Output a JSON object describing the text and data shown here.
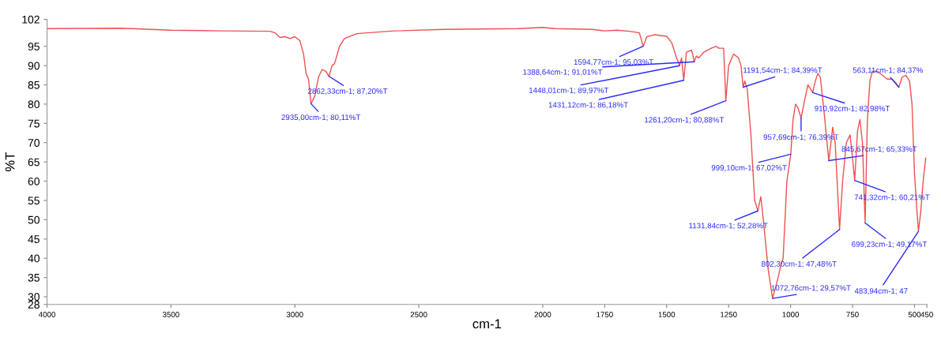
{
  "chart_data": {
    "type": "line",
    "xlabel": "cm-1",
    "ylabel": "%T",
    "xlim": [
      4000,
      450
    ],
    "xticks": [
      4000,
      3500,
      3000,
      2500,
      2000,
      1750,
      1500,
      1250,
      1000,
      750,
      500,
      450
    ],
    "ylim": [
      28,
      102
    ],
    "yticks": [
      28,
      30,
      35,
      40,
      45,
      50,
      55,
      60,
      65,
      70,
      75,
      80,
      85,
      90,
      95,
      102
    ],
    "grid": false,
    "marker": "none",
    "line_style": "solid",
    "series": [
      {
        "color": "#f05050",
        "x": [
          4000,
          3700,
          3500,
          3300,
          3100,
          3080,
          3060,
          3040,
          3020,
          3000,
          2980,
          2965,
          2955,
          2945,
          2935,
          2920,
          2905,
          2890,
          2875,
          2862.33,
          2850,
          2840,
          2820,
          2800,
          2750,
          2600,
          2400,
          2100,
          2000,
          1950,
          1800,
          1750,
          1700,
          1650,
          1610,
          1594.77,
          1580,
          1550,
          1500,
          1480,
          1460,
          1448.01,
          1440,
          1431.12,
          1420,
          1400,
          1395,
          1388.64,
          1380,
          1370,
          1350,
          1320,
          1300,
          1290,
          1270,
          1261.2,
          1250,
          1230,
          1210,
          1200,
          1191.54,
          1185,
          1175,
          1160,
          1145,
          1131.84,
          1120,
          1110,
          1090,
          1072.76,
          1050,
          1040,
          1030,
          1015,
          999.1,
          990,
          980,
          970,
          957.69,
          940,
          930,
          920,
          910.92,
          900,
          890,
          880,
          865,
          845.67,
          830,
          820,
          802.3,
          790,
          775,
          760,
          750,
          741.32,
          730,
          720,
          710,
          699.23,
          690,
          680,
          670,
          650,
          630,
          610,
          590,
          575,
          563.11,
          550,
          535,
          520,
          510,
          500,
          490,
          483.94,
          475,
          465,
          455
        ],
        "values": [
          99.6,
          99.7,
          99.2,
          99.0,
          98.9,
          98.5,
          97.3,
          97.5,
          97.0,
          97.5,
          96.5,
          93,
          88,
          86.5,
          80.1,
          82,
          87,
          89,
          88.5,
          87.2,
          90,
          90.5,
          95,
          97,
          98.3,
          99,
          99.4,
          99.6,
          99.9,
          99.6,
          99.4,
          99.0,
          99.2,
          98.9,
          98.5,
          95.0,
          97.5,
          98.0,
          97.6,
          96,
          92,
          90.0,
          92,
          86.2,
          93.5,
          94,
          93,
          91.0,
          92.5,
          92,
          93.5,
          94.5,
          95,
          94.5,
          94.5,
          80.9,
          90,
          93,
          92,
          90,
          84.4,
          86,
          84,
          72,
          55,
          52.3,
          56,
          50,
          37,
          29.6,
          35,
          38,
          40,
          60,
          67.0,
          76,
          80,
          79,
          76.4,
          82,
          85,
          84,
          83.0,
          86,
          88,
          87,
          78,
          65.3,
          74,
          70,
          47.5,
          60,
          70,
          72,
          66,
          60.2,
          73,
          76,
          70,
          49.2,
          76,
          86,
          88.5,
          88.5,
          87.5,
          86.5,
          86.5,
          85.5,
          84.4,
          87,
          87.5,
          86,
          80,
          62,
          52,
          47,
          52,
          60,
          66
        ]
      }
    ],
    "annotations": [
      {
        "text": "2862,33cm-1; 87,20%T",
        "x": 2862.33,
        "y": 87.2
      },
      {
        "text": "2935,00cm-1; 80,11%T",
        "x": 2935,
        "y": 80.11
      },
      {
        "text": "1594,77cm-1; 95,03%T",
        "x": 1594.77,
        "y": 95.03
      },
      {
        "text": "1388,64cm-1; 91,01%T",
        "x": 1388.64,
        "y": 91.01
      },
      {
        "text": "1448,01cm-1; 89,97%T",
        "x": 1448.01,
        "y": 89.97
      },
      {
        "text": "1431,12cm-1; 86,18%T",
        "x": 1431.12,
        "y": 86.18
      },
      {
        "text": "1191,54cm-1; 84,39%T",
        "x": 1191.54,
        "y": 84.39
      },
      {
        "text": "1261,20cm-1; 80,88%T",
        "x": 1261.2,
        "y": 80.88
      },
      {
        "text": "910,92cm-1; 82,98%T",
        "x": 910.92,
        "y": 82.98
      },
      {
        "text": "957,69cm-1; 76,39%T",
        "x": 957.69,
        "y": 76.39
      },
      {
        "text": "999,10cm-1; 67,02%T",
        "x": 999.1,
        "y": 67.02
      },
      {
        "text": "845,67cm-1; 65,33%T",
        "x": 845.67,
        "y": 65.33
      },
      {
        "text": "741,32cm-1; 60,21%T",
        "x": 741.32,
        "y": 60.21
      },
      {
        "text": "1131,84cm-1; 52,28%T",
        "x": 1131.84,
        "y": 52.28
      },
      {
        "text": "1072,76cm-1; 29,57%T",
        "x": 1072.76,
        "y": 29.57
      },
      {
        "text": "802,30cm-1; 47,48%T",
        "x": 802.3,
        "y": 47.48
      },
      {
        "text": "699,23cm-1; 49,17%T",
        "x": 699.23,
        "y": 49.17
      },
      {
        "text": "563,11cm-1; 84,37%",
        "x": 563.11,
        "y": 84.37
      },
      {
        "text": "483,94cm-1; 47",
        "x": 483.94,
        "y": 47
      }
    ]
  }
}
